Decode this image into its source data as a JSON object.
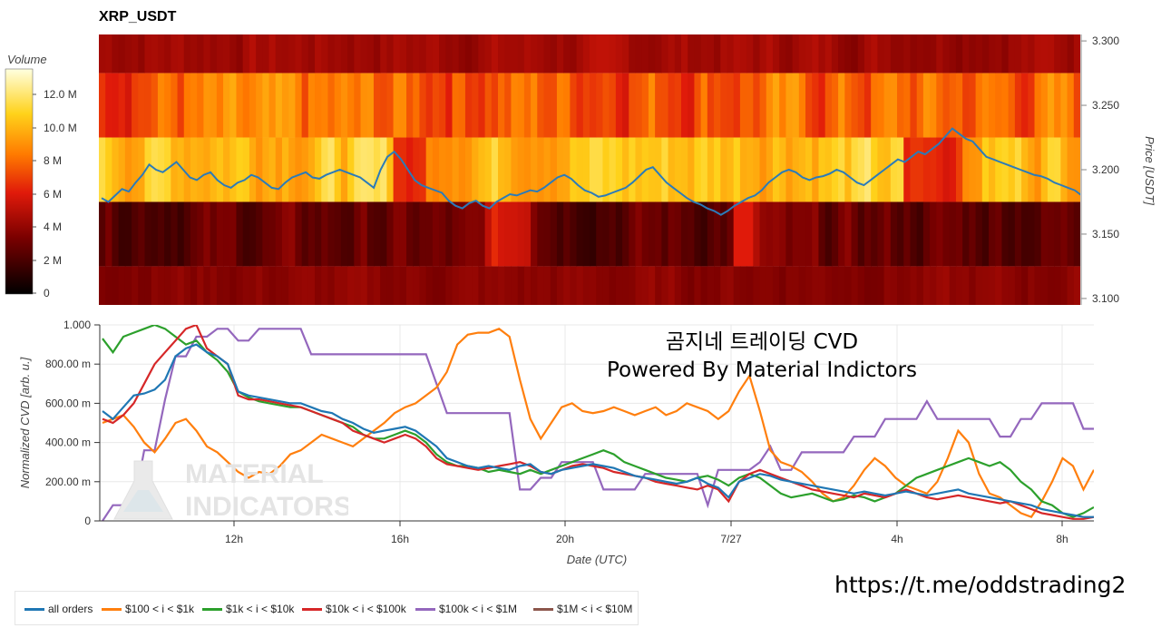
{
  "header": {
    "title": "XRP_USDT"
  },
  "colorbar": {
    "label": "Volume",
    "ticks": [
      "0",
      "2 M",
      "4 M",
      "6 M",
      "8 M",
      "10.0 M",
      "12.0 M"
    ]
  },
  "heatmap": {
    "ylabel": "Price [USDT]",
    "yticks": [
      "3.300",
      "3.250",
      "3.200",
      "3.150",
      "3.100"
    ]
  },
  "cvd": {
    "ylabel": "Normalized CVD [arb. u.]",
    "xlabel": "Date (UTC)",
    "yticks": [
      "1.000",
      "800.00 m",
      "600.00 m",
      "400.00 m",
      "200.00 m",
      "0"
    ],
    "xticks": [
      "12h",
      "16h",
      "20h",
      "7/27",
      "4h",
      "8h"
    ]
  },
  "caption": {
    "line1": "곰지네 트레이딩 CVD",
    "line2": "Powered By Material Indictors"
  },
  "watermark": {
    "line1": "MATERIAL",
    "line2": "INDICATORS"
  },
  "url": "https://t.me/oddstrading2",
  "legend": [
    {
      "label": "all orders",
      "color": "#1f77b4"
    },
    {
      "label": "$100 < i < $1k",
      "color": "#ff7f0e"
    },
    {
      "label": "$1k < i < $10k",
      "color": "#2ca02c"
    },
    {
      "label": "$10k < i < $100k",
      "color": "#d62728"
    },
    {
      "label": "$100k < i < $1M",
      "color": "#9467bd"
    },
    {
      "label": "$1M < i < $10M",
      "color": "#8c564b"
    }
  ],
  "chart_data": [
    {
      "type": "heatmap",
      "title": "XRP_USDT",
      "ylabel": "Price [USDT]",
      "colorbar_label": "Volume",
      "ylim": [
        3.095,
        3.305
      ],
      "price_bands": [
        {
          "range": [
            3.275,
            3.305
          ],
          "level": "low (~2–4 M)"
        },
        {
          "range": [
            3.225,
            3.275
          ],
          "level": "medium-high, varying (~4–10 M)"
        },
        {
          "range": [
            3.175,
            3.225
          ],
          "level": "high (~8–13 M)"
        },
        {
          "range": [
            3.125,
            3.175
          ],
          "level": "very low (~0–3 M)"
        },
        {
          "range": [
            3.095,
            3.125
          ],
          "level": "low (~1–2 M)"
        }
      ],
      "price_line": {
        "name": "price",
        "values": [
          3.178,
          3.175,
          3.18,
          3.185,
          3.183,
          3.19,
          3.196,
          3.204,
          3.2,
          3.198,
          3.202,
          3.206,
          3.2,
          3.194,
          3.192,
          3.196,
          3.198,
          3.192,
          3.188,
          3.186,
          3.19,
          3.192,
          3.196,
          3.194,
          3.19,
          3.186,
          3.185,
          3.19,
          3.194,
          3.196,
          3.198,
          3.194,
          3.193,
          3.196,
          3.198,
          3.2,
          3.198,
          3.196,
          3.194,
          3.19,
          3.186,
          3.2,
          3.21,
          3.214,
          3.208,
          3.2,
          3.192,
          3.188,
          3.186,
          3.184,
          3.182,
          3.176,
          3.172,
          3.17,
          3.174,
          3.176,
          3.172,
          3.17,
          3.175,
          3.178,
          3.181,
          3.18,
          3.182,
          3.184,
          3.183,
          3.186,
          3.19,
          3.194,
          3.196,
          3.193,
          3.188,
          3.184,
          3.182,
          3.179,
          3.18,
          3.182,
          3.184,
          3.186,
          3.19,
          3.195,
          3.2,
          3.202,
          3.196,
          3.19,
          3.186,
          3.182,
          3.178,
          3.175,
          3.173,
          3.17,
          3.168,
          3.165,
          3.168,
          3.172,
          3.175,
          3.178,
          3.18,
          3.184,
          3.19,
          3.194,
          3.198,
          3.2,
          3.198,
          3.194,
          3.192,
          3.194,
          3.195,
          3.197,
          3.2,
          3.198,
          3.194,
          3.19,
          3.188,
          3.192,
          3.196,
          3.2,
          3.204,
          3.208,
          3.206,
          3.21,
          3.214,
          3.212,
          3.216,
          3.22,
          3.226,
          3.232,
          3.228,
          3.224,
          3.222,
          3.216,
          3.21,
          3.208,
          3.206,
          3.204,
          3.202,
          3.2,
          3.198,
          3.196,
          3.195,
          3.193,
          3.19,
          3.188,
          3.186,
          3.184,
          3.18,
          3.182
        ]
      }
    },
    {
      "type": "line",
      "xlabel": "Date (UTC)",
      "ylabel": "Normalized CVD [arb. u.]",
      "ylim": [
        0,
        1
      ],
      "x_ticks": [
        "12h",
        "16h",
        "20h",
        "7/27",
        "4h",
        "8h"
      ],
      "x_range_hours": [
        8.2,
        8.8
      ],
      "series": [
        {
          "name": "all orders",
          "values": [
            0.56,
            0.52,
            0.58,
            0.64,
            0.65,
            0.67,
            0.72,
            0.84,
            0.88,
            0.9,
            0.86,
            0.84,
            0.8,
            0.66,
            0.64,
            0.63,
            0.62,
            0.61,
            0.6,
            0.6,
            0.58,
            0.56,
            0.55,
            0.52,
            0.5,
            0.47,
            0.45,
            0.46,
            0.47,
            0.48,
            0.46,
            0.42,
            0.38,
            0.32,
            0.3,
            0.28,
            0.27,
            0.28,
            0.27,
            0.26,
            0.28,
            0.29,
            0.25,
            0.24,
            0.26,
            0.27,
            0.28,
            0.29,
            0.28,
            0.27,
            0.25,
            0.23,
            0.22,
            0.21,
            0.2,
            0.19,
            0.2,
            0.22,
            0.19,
            0.17,
            0.12,
            0.2,
            0.22,
            0.24,
            0.23,
            0.21,
            0.2,
            0.19,
            0.18,
            0.17,
            0.16,
            0.15,
            0.14,
            0.15,
            0.14,
            0.13,
            0.14,
            0.15,
            0.14,
            0.13,
            0.14,
            0.15,
            0.16,
            0.14,
            0.13,
            0.12,
            0.11,
            0.1,
            0.09,
            0.08,
            0.06,
            0.05,
            0.04,
            0.03,
            0.02,
            0.02
          ]
        },
        {
          "name": "$100 < i < $1k",
          "values": [
            0.5,
            0.52,
            0.54,
            0.48,
            0.4,
            0.35,
            0.42,
            0.5,
            0.52,
            0.46,
            0.38,
            0.35,
            0.3,
            0.25,
            0.22,
            0.25,
            0.24,
            0.28,
            0.34,
            0.36,
            0.4,
            0.44,
            0.42,
            0.4,
            0.38,
            0.42,
            0.46,
            0.5,
            0.55,
            0.58,
            0.6,
            0.64,
            0.68,
            0.76,
            0.9,
            0.95,
            0.96,
            0.96,
            0.98,
            0.94,
            0.72,
            0.52,
            0.42,
            0.5,
            0.58,
            0.6,
            0.56,
            0.55,
            0.56,
            0.58,
            0.56,
            0.54,
            0.56,
            0.58,
            0.54,
            0.56,
            0.6,
            0.58,
            0.56,
            0.52,
            0.56,
            0.66,
            0.74,
            0.56,
            0.36,
            0.3,
            0.28,
            0.25,
            0.2,
            0.14,
            0.1,
            0.12,
            0.18,
            0.26,
            0.32,
            0.28,
            0.22,
            0.18,
            0.16,
            0.14,
            0.2,
            0.32,
            0.46,
            0.4,
            0.24,
            0.14,
            0.12,
            0.08,
            0.04,
            0.02,
            0.1,
            0.2,
            0.32,
            0.28,
            0.16,
            0.26
          ]
        },
        {
          "name": "$1k < i < $10k",
          "values": [
            0.93,
            0.86,
            0.94,
            0.96,
            0.98,
            1.0,
            0.98,
            0.94,
            0.9,
            0.92,
            0.86,
            0.82,
            0.76,
            0.66,
            0.63,
            0.61,
            0.6,
            0.59,
            0.58,
            0.58,
            0.56,
            0.54,
            0.52,
            0.5,
            0.48,
            0.44,
            0.42,
            0.42,
            0.44,
            0.46,
            0.44,
            0.4,
            0.34,
            0.3,
            0.28,
            0.28,
            0.27,
            0.25,
            0.26,
            0.25,
            0.24,
            0.26,
            0.24,
            0.26,
            0.28,
            0.3,
            0.32,
            0.34,
            0.36,
            0.34,
            0.3,
            0.28,
            0.26,
            0.24,
            0.22,
            0.21,
            0.2,
            0.22,
            0.23,
            0.21,
            0.18,
            0.22,
            0.24,
            0.22,
            0.18,
            0.14,
            0.12,
            0.13,
            0.14,
            0.12,
            0.1,
            0.11,
            0.13,
            0.12,
            0.1,
            0.12,
            0.14,
            0.18,
            0.22,
            0.24,
            0.26,
            0.28,
            0.3,
            0.32,
            0.3,
            0.28,
            0.3,
            0.26,
            0.2,
            0.16,
            0.1,
            0.08,
            0.04,
            0.02,
            0.04,
            0.07
          ]
        },
        {
          "name": "$10k < i < $100k",
          "values": [
            0.52,
            0.5,
            0.54,
            0.6,
            0.7,
            0.8,
            0.86,
            0.92,
            0.98,
            1.0,
            0.88,
            0.84,
            0.8,
            0.64,
            0.62,
            0.62,
            0.61,
            0.6,
            0.59,
            0.58,
            0.56,
            0.54,
            0.52,
            0.5,
            0.46,
            0.44,
            0.42,
            0.4,
            0.42,
            0.44,
            0.42,
            0.38,
            0.32,
            0.29,
            0.28,
            0.27,
            0.26,
            0.27,
            0.28,
            0.29,
            0.3,
            0.28,
            0.25,
            0.24,
            0.26,
            0.28,
            0.29,
            0.28,
            0.27,
            0.25,
            0.24,
            0.23,
            0.22,
            0.2,
            0.19,
            0.18,
            0.17,
            0.16,
            0.18,
            0.16,
            0.1,
            0.2,
            0.24,
            0.26,
            0.24,
            0.22,
            0.2,
            0.18,
            0.16,
            0.15,
            0.14,
            0.13,
            0.12,
            0.14,
            0.13,
            0.12,
            0.14,
            0.16,
            0.14,
            0.12,
            0.11,
            0.12,
            0.13,
            0.12,
            0.11,
            0.1,
            0.09,
            0.1,
            0.08,
            0.06,
            0.04,
            0.03,
            0.02,
            0.01,
            0.01,
            0.02
          ]
        },
        {
          "name": "$100k < i < $1M",
          "values": [
            0.0,
            0.08,
            0.08,
            0.08,
            0.36,
            0.36,
            0.62,
            0.84,
            0.84,
            0.94,
            0.94,
            0.98,
            0.98,
            0.92,
            0.92,
            0.98,
            0.98,
            0.98,
            0.98,
            0.98,
            0.85,
            0.85,
            0.85,
            0.85,
            0.85,
            0.85,
            0.85,
            0.85,
            0.85,
            0.85,
            0.85,
            0.85,
            0.7,
            0.55,
            0.55,
            0.55,
            0.55,
            0.55,
            0.55,
            0.55,
            0.16,
            0.16,
            0.22,
            0.22,
            0.3,
            0.3,
            0.3,
            0.3,
            0.16,
            0.16,
            0.16,
            0.16,
            0.24,
            0.24,
            0.24,
            0.24,
            0.24,
            0.24,
            0.08,
            0.26,
            0.26,
            0.26,
            0.26,
            0.3,
            0.38,
            0.26,
            0.26,
            0.35,
            0.35,
            0.35,
            0.35,
            0.35,
            0.43,
            0.43,
            0.43,
            0.52,
            0.52,
            0.52,
            0.52,
            0.61,
            0.52,
            0.52,
            0.52,
            0.52,
            0.52,
            0.52,
            0.43,
            0.43,
            0.52,
            0.52,
            0.6,
            0.6,
            0.6,
            0.6,
            0.47,
            0.47
          ]
        },
        {
          "name": "$1M < i < $10M",
          "values": []
        }
      ]
    }
  ]
}
